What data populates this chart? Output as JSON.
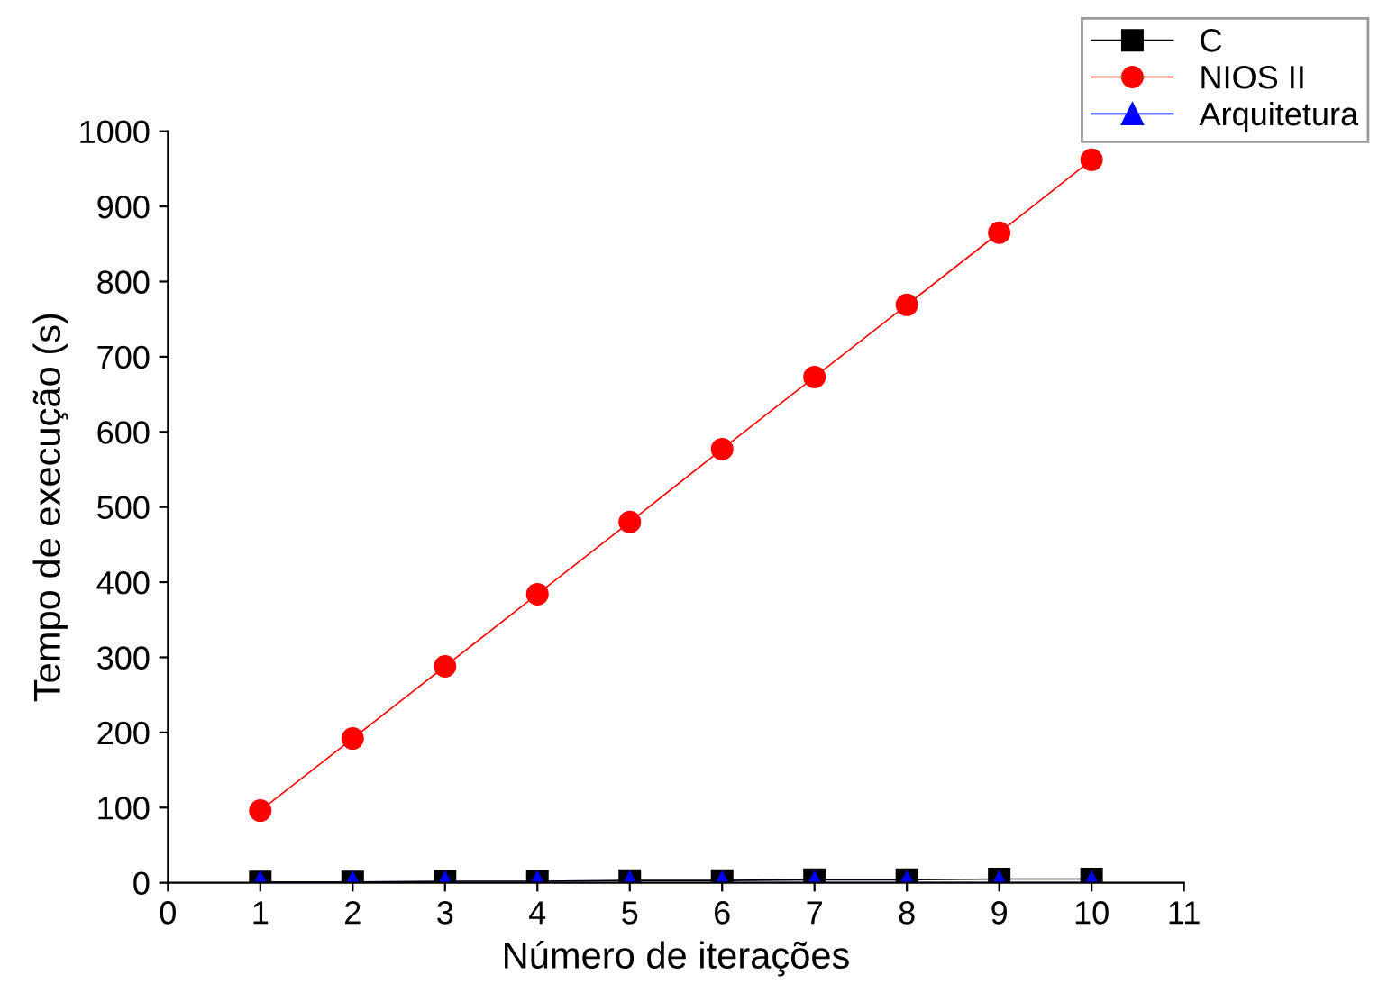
{
  "chart_data": {
    "type": "line",
    "xlabel": "Número de iterações",
    "ylabel": "Tempo de execução (s)",
    "x": [
      1,
      2,
      3,
      4,
      5,
      6,
      7,
      8,
      9,
      10
    ],
    "series": [
      {
        "name": "C",
        "color": "#000000",
        "marker": "square",
        "values": [
          1,
          1,
          2,
          2,
          3,
          3,
          4,
          4,
          5,
          5
        ]
      },
      {
        "name": "NIOS II",
        "color": "#ff0000",
        "marker": "circle",
        "values": [
          96,
          192,
          288,
          384,
          480,
          577,
          673,
          769,
          865,
          962
        ]
      },
      {
        "name": "Arquitetura",
        "color": "#0000ff",
        "marker": "triangle",
        "values": [
          0,
          0,
          0,
          0,
          0,
          0,
          0,
          0,
          0,
          0
        ]
      }
    ],
    "xlim": [
      0,
      11
    ],
    "xticks": [
      0,
      1,
      2,
      3,
      4,
      5,
      6,
      7,
      8,
      9,
      10,
      11
    ],
    "ylim": [
      0,
      1000
    ],
    "yticks": [
      0,
      100,
      200,
      300,
      400,
      500,
      600,
      700,
      800,
      900,
      1000
    ],
    "grid": false,
    "legend": "top right",
    "line_style": "solid"
  }
}
